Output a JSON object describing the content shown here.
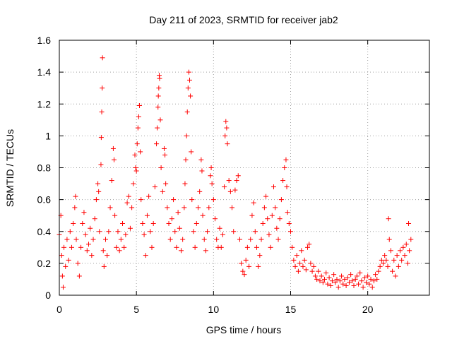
{
  "chart_data": {
    "type": "scatter",
    "title": "Day 211 of 2023, SRMTID for receiver jab2",
    "xlabel": "GPS time / hours",
    "ylabel": "SRMTID / TECUs",
    "xlim": [
      0,
      24
    ],
    "ylim": [
      0,
      1.6
    ],
    "xticks": [
      0,
      5,
      10,
      15,
      20
    ],
    "xtick_labels": [
      "0",
      "5",
      "10",
      "15",
      "20"
    ],
    "yticks": [
      0,
      0.2,
      0.4,
      0.6,
      0.8,
      1.0,
      1.2,
      1.4,
      1.6
    ],
    "ytick_labels": [
      "0",
      "0.2",
      "0.4",
      "0.6",
      "0.8",
      "1",
      "1.2",
      "1.4",
      "1.6"
    ],
    "grid": true,
    "marker": "plus",
    "marker_color": "#ff0000",
    "series": [
      {
        "name": "SRMTID",
        "points": [
          [
            0.0,
            0.38
          ],
          [
            0.1,
            0.5
          ],
          [
            0.15,
            0.25
          ],
          [
            0.2,
            0.12
          ],
          [
            0.25,
            0.05
          ],
          [
            0.3,
            0.3
          ],
          [
            0.4,
            0.18
          ],
          [
            0.5,
            0.35
          ],
          [
            0.6,
            0.22
          ],
          [
            0.7,
            0.4
          ],
          [
            0.8,
            0.3
          ],
          [
            0.9,
            0.45
          ],
          [
            1.0,
            0.55
          ],
          [
            1.05,
            0.62
          ],
          [
            1.1,
            0.35
          ],
          [
            1.2,
            0.2
          ],
          [
            1.3,
            0.12
          ],
          [
            1.4,
            0.3
          ],
          [
            1.5,
            0.45
          ],
          [
            1.6,
            0.52
          ],
          [
            1.7,
            0.38
          ],
          [
            1.8,
            0.28
          ],
          [
            1.9,
            0.32
          ],
          [
            2.0,
            0.42
          ],
          [
            2.1,
            0.25
          ],
          [
            2.2,
            0.35
          ],
          [
            2.3,
            0.48
          ],
          [
            2.4,
            0.6
          ],
          [
            2.5,
            0.7
          ],
          [
            2.55,
            0.65
          ],
          [
            2.6,
            0.4
          ],
          [
            2.7,
            0.82
          ],
          [
            2.72,
            0.99
          ],
          [
            2.75,
            1.15
          ],
          [
            2.78,
            1.3
          ],
          [
            2.8,
            1.49
          ],
          [
            2.85,
            0.28
          ],
          [
            2.9,
            0.18
          ],
          [
            3.0,
            0.35
          ],
          [
            3.1,
            0.25
          ],
          [
            3.2,
            0.4
          ],
          [
            3.3,
            0.55
          ],
          [
            3.4,
            0.72
          ],
          [
            3.5,
            0.92
          ],
          [
            3.55,
            0.85
          ],
          [
            3.6,
            0.5
          ],
          [
            3.7,
            0.3
          ],
          [
            3.8,
            0.4
          ],
          [
            3.9,
            0.28
          ],
          [
            4.0,
            0.35
          ],
          [
            4.1,
            0.45
          ],
          [
            4.2,
            0.3
          ],
          [
            4.3,
            0.38
          ],
          [
            4.4,
            0.58
          ],
          [
            4.5,
            0.62
          ],
          [
            4.6,
            0.42
          ],
          [
            4.7,
            0.55
          ],
          [
            4.8,
            0.7
          ],
          [
            4.9,
            0.88
          ],
          [
            4.95,
            0.8
          ],
          [
            5.0,
            0.78
          ],
          [
            5.05,
            0.95
          ],
          [
            5.1,
            1.05
          ],
          [
            5.15,
            1.12
          ],
          [
            5.2,
            1.19
          ],
          [
            5.25,
            0.9
          ],
          [
            5.3,
            0.6
          ],
          [
            5.4,
            0.45
          ],
          [
            5.5,
            0.38
          ],
          [
            5.6,
            0.25
          ],
          [
            5.7,
            0.5
          ],
          [
            5.8,
            0.62
          ],
          [
            5.9,
            0.4
          ],
          [
            6.0,
            0.3
          ],
          [
            6.1,
            0.45
          ],
          [
            6.2,
            0.68
          ],
          [
            6.3,
            0.95
          ],
          [
            6.35,
            1.05
          ],
          [
            6.4,
            1.18
          ],
          [
            6.42,
            1.25
          ],
          [
            6.45,
            1.3
          ],
          [
            6.48,
            1.38
          ],
          [
            6.5,
            1.36
          ],
          [
            6.55,
            1.1
          ],
          [
            6.6,
            0.8
          ],
          [
            6.7,
            0.65
          ],
          [
            6.8,
            0.92
          ],
          [
            6.85,
            0.88
          ],
          [
            6.9,
            0.7
          ],
          [
            7.0,
            0.55
          ],
          [
            7.1,
            0.45
          ],
          [
            7.2,
            0.35
          ],
          [
            7.3,
            0.48
          ],
          [
            7.4,
            0.6
          ],
          [
            7.5,
            0.4
          ],
          [
            7.6,
            0.3
          ],
          [
            7.7,
            0.52
          ],
          [
            7.8,
            0.42
          ],
          [
            7.9,
            0.28
          ],
          [
            8.0,
            0.35
          ],
          [
            8.1,
            0.55
          ],
          [
            8.15,
            0.7
          ],
          [
            8.2,
            0.85
          ],
          [
            8.25,
            1.0
          ],
          [
            8.3,
            1.15
          ],
          [
            8.35,
            1.3
          ],
          [
            8.4,
            1.4
          ],
          [
            8.45,
            1.35
          ],
          [
            8.5,
            1.25
          ],
          [
            8.55,
            0.9
          ],
          [
            8.6,
            0.6
          ],
          [
            8.7,
            0.4
          ],
          [
            8.8,
            0.3
          ],
          [
            8.9,
            0.45
          ],
          [
            9.0,
            0.55
          ],
          [
            9.1,
            0.65
          ],
          [
            9.2,
            0.85
          ],
          [
            9.25,
            0.78
          ],
          [
            9.3,
            0.5
          ],
          [
            9.4,
            0.35
          ],
          [
            9.5,
            0.28
          ],
          [
            9.6,
            0.4
          ],
          [
            9.7,
            0.55
          ],
          [
            9.8,
            0.75
          ],
          [
            9.85,
            0.8
          ],
          [
            9.9,
            0.7
          ],
          [
            10.0,
            0.6
          ],
          [
            10.1,
            0.48
          ],
          [
            10.2,
            0.35
          ],
          [
            10.3,
            0.3
          ],
          [
            10.4,
            0.42
          ],
          [
            10.5,
            0.3
          ],
          [
            10.6,
            0.38
          ],
          [
            10.7,
            0.68
          ],
          [
            10.75,
            1.0
          ],
          [
            10.8,
            1.09
          ],
          [
            10.85,
            1.05
          ],
          [
            10.9,
            0.95
          ],
          [
            11.0,
            0.72
          ],
          [
            11.1,
            0.65
          ],
          [
            11.2,
            0.55
          ],
          [
            11.3,
            0.4
          ],
          [
            11.4,
            0.66
          ],
          [
            11.5,
            0.72
          ],
          [
            11.6,
            0.75
          ],
          [
            11.7,
            0.35
          ],
          [
            11.8,
            0.2
          ],
          [
            11.9,
            0.15
          ],
          [
            12.0,
            0.13
          ],
          [
            12.1,
            0.22
          ],
          [
            12.2,
            0.3
          ],
          [
            12.3,
            0.18
          ],
          [
            12.4,
            0.35
          ],
          [
            12.5,
            0.5
          ],
          [
            12.6,
            0.58
          ],
          [
            12.7,
            0.4
          ],
          [
            12.8,
            0.3
          ],
          [
            12.9,
            0.18
          ],
          [
            13.0,
            0.25
          ],
          [
            13.1,
            0.35
          ],
          [
            13.2,
            0.45
          ],
          [
            13.3,
            0.55
          ],
          [
            13.4,
            0.62
          ],
          [
            13.5,
            0.48
          ],
          [
            13.6,
            0.38
          ],
          [
            13.7,
            0.3
          ],
          [
            13.8,
            0.5
          ],
          [
            13.9,
            0.68
          ],
          [
            14.0,
            0.55
          ],
          [
            14.1,
            0.42
          ],
          [
            14.2,
            0.35
          ],
          [
            14.3,
            0.48
          ],
          [
            14.4,
            0.6
          ],
          [
            14.5,
            0.72
          ],
          [
            14.6,
            0.8
          ],
          [
            14.7,
            0.85
          ],
          [
            14.75,
            0.68
          ],
          [
            14.8,
            0.52
          ],
          [
            14.9,
            0.45
          ],
          [
            15.0,
            0.4
          ],
          [
            15.1,
            0.3
          ],
          [
            15.2,
            0.22
          ],
          [
            15.3,
            0.18
          ],
          [
            15.4,
            0.25
          ],
          [
            15.5,
            0.15
          ],
          [
            15.6,
            0.2
          ],
          [
            15.7,
            0.28
          ],
          [
            15.8,
            0.18
          ],
          [
            15.9,
            0.22
          ],
          [
            16.0,
            0.16
          ],
          [
            16.1,
            0.3
          ],
          [
            16.2,
            0.32
          ],
          [
            16.3,
            0.2
          ],
          [
            16.4,
            0.15
          ],
          [
            16.5,
            0.18
          ],
          [
            16.6,
            0.12
          ],
          [
            16.7,
            0.1
          ],
          [
            16.8,
            0.15
          ],
          [
            16.9,
            0.09
          ],
          [
            17.0,
            0.12
          ],
          [
            17.1,
            0.08
          ],
          [
            17.2,
            0.1
          ],
          [
            17.3,
            0.14
          ],
          [
            17.4,
            0.07
          ],
          [
            17.5,
            0.11
          ],
          [
            17.6,
            0.06
          ],
          [
            17.7,
            0.09
          ],
          [
            17.8,
            0.13
          ],
          [
            17.9,
            0.08
          ],
          [
            18.0,
            0.1
          ],
          [
            18.1,
            0.05
          ],
          [
            18.2,
            0.09
          ],
          [
            18.3,
            0.12
          ],
          [
            18.4,
            0.07
          ],
          [
            18.5,
            0.1
          ],
          [
            18.6,
            0.06
          ],
          [
            18.7,
            0.11
          ],
          [
            18.8,
            0.08
          ],
          [
            18.9,
            0.13
          ],
          [
            19.0,
            0.09
          ],
          [
            19.1,
            0.06
          ],
          [
            19.2,
            0.1
          ],
          [
            19.3,
            0.12
          ],
          [
            19.4,
            0.07
          ],
          [
            19.5,
            0.14
          ],
          [
            19.6,
            0.09
          ],
          [
            19.7,
            0.05
          ],
          [
            19.8,
            0.11
          ],
          [
            19.9,
            0.08
          ],
          [
            20.0,
            0.12
          ],
          [
            20.1,
            0.07
          ],
          [
            20.2,
            0.1
          ],
          [
            20.3,
            0.05
          ],
          [
            20.4,
            0.09
          ],
          [
            20.5,
            0.13
          ],
          [
            20.6,
            0.1
          ],
          [
            20.7,
            0.15
          ],
          [
            20.8,
            0.18
          ],
          [
            20.9,
            0.22
          ],
          [
            21.0,
            0.2
          ],
          [
            21.1,
            0.25
          ],
          [
            21.2,
            0.22
          ],
          [
            21.3,
            0.18
          ],
          [
            21.35,
            0.48
          ],
          [
            21.4,
            0.35
          ],
          [
            21.5,
            0.28
          ],
          [
            21.6,
            0.15
          ],
          [
            21.7,
            0.22
          ],
          [
            21.8,
            0.12
          ],
          [
            21.9,
            0.25
          ],
          [
            22.0,
            0.18
          ],
          [
            22.1,
            0.28
          ],
          [
            22.2,
            0.22
          ],
          [
            22.3,
            0.3
          ],
          [
            22.4,
            0.25
          ],
          [
            22.5,
            0.32
          ],
          [
            22.6,
            0.2
          ],
          [
            22.65,
            0.45
          ],
          [
            22.7,
            0.28
          ],
          [
            22.8,
            0.35
          ]
        ]
      }
    ]
  }
}
